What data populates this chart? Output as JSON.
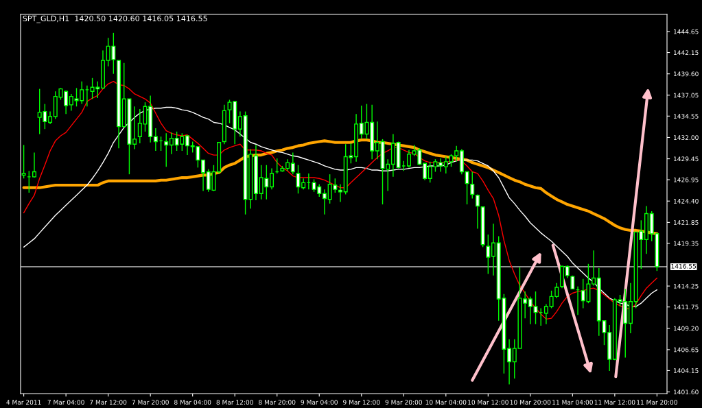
{
  "chart_data": {
    "type": "candlestick",
    "title": "SPT_GLD,H1  1420.50 1420.60 1416.05 1416.55",
    "color": "#00ff00",
    "categories": [
      "4 Mar 2011",
      null,
      null,
      null,
      null,
      null,
      null,
      null,
      "7 Mar 04:00",
      null,
      null,
      null,
      null,
      null,
      null,
      null,
      "7 Mar 12:00",
      null,
      null,
      null,
      null,
      null,
      null,
      null,
      "7 Mar 20:00",
      null,
      null,
      null,
      null,
      null,
      null,
      null,
      "8 Mar 04:00",
      null,
      null,
      null,
      null,
      null,
      null,
      null,
      "8 Mar 12:00",
      null,
      null,
      null,
      null,
      null,
      null,
      null,
      "8 Mar 20:00",
      null,
      null,
      null,
      null,
      null,
      null,
      null,
      "9 Mar 04:00",
      null,
      null,
      null,
      null,
      null,
      null,
      null,
      "9 Mar 12:00",
      null,
      null,
      null,
      null,
      null,
      null,
      null,
      "9 Mar 20:00",
      null,
      null,
      null,
      null,
      null,
      null,
      null,
      "10 Mar 04:00",
      null,
      null,
      null,
      null,
      null,
      null,
      null,
      "10 Mar 12:00",
      null,
      null,
      null,
      null,
      null,
      null,
      null,
      "10 Mar 20:00",
      null,
      null,
      null,
      null,
      null,
      null,
      null,
      "11 Mar 04:00",
      null,
      null,
      null,
      null,
      null,
      null,
      null,
      "11 Mar 12:00",
      null,
      null,
      null,
      null,
      null,
      null,
      null,
      "11 Mar 20:00"
    ],
    "ohlc": [
      [
        1427.5,
        1431.1,
        1427.1,
        1427.7
      ],
      [
        1427.3,
        1428.0,
        1425.4,
        1427.3
      ],
      [
        1427.3,
        1430.2,
        1427.2,
        1427.9
      ],
      [
        1434.4,
        1437.8,
        1432.4,
        1435.0
      ],
      [
        1435.1,
        1436.0,
        1433.0,
        1433.9
      ],
      [
        1433.8,
        1435.1,
        1433.6,
        1434.5
      ],
      [
        1434.5,
        1437.5,
        1434.2,
        1436.9
      ],
      [
        1436.8,
        1437.9,
        1436.5,
        1437.8
      ],
      [
        1437.5,
        1437.6,
        1434.8,
        1435.8
      ],
      [
        1435.9,
        1437.2,
        1435.2,
        1436.9
      ],
      [
        1436.6,
        1437.9,
        1435.7,
        1436.4
      ],
      [
        1436.4,
        1438.7,
        1436.0,
        1437.7
      ],
      [
        1437.7,
        1438.2,
        1435.7,
        1437.7
      ],
      [
        1437.5,
        1439.1,
        1436.6,
        1438.0
      ],
      [
        1438.0,
        1438.7,
        1436.7,
        1437.8
      ],
      [
        1437.9,
        1442.4,
        1437.8,
        1441.2
      ],
      [
        1441.2,
        1443.9,
        1440.5,
        1442.9
      ],
      [
        1442.9,
        1444.5,
        1439.6,
        1441.3
      ],
      [
        1441.2,
        1441.2,
        1430.7,
        1433.3
      ],
      [
        1433.3,
        1440.9,
        1433.2,
        1436.6
      ],
      [
        1436.6,
        1436.6,
        1427.6,
        1431.2
      ],
      [
        1431.2,
        1435.7,
        1430.6,
        1431.8
      ],
      [
        1432.1,
        1435.4,
        1431.3,
        1433.7
      ],
      [
        1433.6,
        1436.2,
        1432.7,
        1435.7
      ],
      [
        1435.7,
        1437.0,
        1431.4,
        1432.1
      ],
      [
        1432.1,
        1433.1,
        1430.4,
        1431.5
      ],
      [
        1431.6,
        1432.1,
        1430.4,
        1431.6
      ],
      [
        1431.5,
        1432.5,
        1428.5,
        1431.1
      ],
      [
        1431.1,
        1432.6,
        1430.0,
        1431.9
      ],
      [
        1431.9,
        1432.7,
        1430.4,
        1431.1
      ],
      [
        1431.2,
        1432.5,
        1430.4,
        1432.1
      ],
      [
        1432.2,
        1432.2,
        1429.9,
        1431.0
      ],
      [
        1431.0,
        1431.5,
        1430.2,
        1430.9
      ],
      [
        1430.9,
        1430.9,
        1428.4,
        1429.3
      ],
      [
        1429.3,
        1429.3,
        1425.6,
        1427.8
      ],
      [
        1427.9,
        1428.2,
        1425.5,
        1425.8
      ],
      [
        1425.7,
        1428.7,
        1425.6,
        1427.9
      ],
      [
        1427.9,
        1431.4,
        1427.7,
        1431.4
      ],
      [
        1431.5,
        1435.9,
        1431.2,
        1435.2
      ],
      [
        1435.3,
        1436.5,
        1433.7,
        1436.2
      ],
      [
        1436.3,
        1436.3,
        1431.2,
        1433.0
      ],
      [
        1433.0,
        1435.1,
        1432.1,
        1434.5
      ],
      [
        1434.6,
        1435.1,
        1422.8,
        1424.6
      ],
      [
        1424.6,
        1430.6,
        1423.5,
        1430.0
      ],
      [
        1429.8,
        1431.1,
        1424.5,
        1425.3
      ],
      [
        1425.3,
        1428.7,
        1424.6,
        1427.2
      ],
      [
        1427.1,
        1428.7,
        1424.6,
        1426.1
      ],
      [
        1426.1,
        1428.3,
        1425.8,
        1427.7
      ],
      [
        1427.9,
        1429.5,
        1427.7,
        1427.9
      ],
      [
        1428.0,
        1428.6,
        1427.9,
        1428.3
      ],
      [
        1428.3,
        1429.4,
        1428.0,
        1429.0
      ],
      [
        1428.9,
        1430.2,
        1427.6,
        1427.9
      ],
      [
        1427.7,
        1428.7,
        1425.3,
        1426.1
      ],
      [
        1426.0,
        1427.1,
        1425.8,
        1426.6
      ],
      [
        1426.6,
        1427.7,
        1425.8,
        1426.6
      ],
      [
        1426.6,
        1427.0,
        1425.5,
        1425.8
      ],
      [
        1426.1,
        1426.4,
        1424.9,
        1425.3
      ],
      [
        1425.3,
        1425.8,
        1422.8,
        1424.7
      ],
      [
        1424.6,
        1427.6,
        1424.1,
        1426.4
      ],
      [
        1426.3,
        1427.1,
        1425.4,
        1425.8
      ],
      [
        1425.7,
        1426.4,
        1424.3,
        1425.5
      ],
      [
        1425.5,
        1431.2,
        1425.2,
        1429.7
      ],
      [
        1429.8,
        1431.3,
        1428.9,
        1429.6
      ],
      [
        1429.7,
        1434.8,
        1429.1,
        1433.6
      ],
      [
        1433.7,
        1435.8,
        1431.9,
        1432.4
      ],
      [
        1432.4,
        1436.0,
        1431.8,
        1433.8
      ],
      [
        1433.8,
        1435.9,
        1429.4,
        1430.4
      ],
      [
        1430.4,
        1433.9,
        1429.4,
        1431.4
      ],
      [
        1431.5,
        1431.8,
        1424.0,
        1428.3
      ],
      [
        1428.2,
        1429.4,
        1425.6,
        1428.8
      ],
      [
        1428.8,
        1432.4,
        1427.3,
        1431.3
      ],
      [
        1431.4,
        1431.5,
        1428.3,
        1428.4
      ],
      [
        1428.6,
        1429.2,
        1428.0,
        1428.6
      ],
      [
        1428.6,
        1430.5,
        1428.4,
        1430.0
      ],
      [
        1430.0,
        1431.1,
        1429.8,
        1430.4
      ],
      [
        1430.5,
        1430.7,
        1428.7,
        1428.8
      ],
      [
        1428.9,
        1428.9,
        1426.9,
        1427.1
      ],
      [
        1427.1,
        1429.1,
        1426.6,
        1428.5
      ],
      [
        1428.5,
        1429.4,
        1427.9,
        1429.1
      ],
      [
        1429.0,
        1429.5,
        1427.9,
        1428.6
      ],
      [
        1428.5,
        1429.7,
        1427.7,
        1429.1
      ],
      [
        1429.1,
        1430.0,
        1428.5,
        1429.8
      ],
      [
        1429.8,
        1431.0,
        1429.1,
        1430.4
      ],
      [
        1430.4,
        1430.6,
        1427.6,
        1427.9
      ],
      [
        1427.9,
        1427.9,
        1424.0,
        1426.5
      ],
      [
        1426.4,
        1427.9,
        1424.7,
        1425.2
      ],
      [
        1425.1,
        1425.2,
        1421.1,
        1423.8
      ],
      [
        1423.7,
        1423.7,
        1418.9,
        1419.2
      ],
      [
        1419.0,
        1420.4,
        1415.7,
        1417.7
      ],
      [
        1417.8,
        1421.7,
        1415.5,
        1419.4
      ],
      [
        1419.4,
        1420.2,
        1410.1,
        1412.7
      ],
      [
        1412.8,
        1413.3,
        1403.8,
        1406.7
      ],
      [
        1406.8,
        1407.9,
        1402.5,
        1405.2
      ],
      [
        1405.2,
        1407.9,
        1403.2,
        1406.8
      ],
      [
        1406.8,
        1416.5,
        1406.8,
        1412.8
      ],
      [
        1412.7,
        1413.6,
        1410.4,
        1412.2
      ],
      [
        1412.7,
        1413.0,
        1409.7,
        1411.8
      ],
      [
        1411.8,
        1413.6,
        1409.7,
        1411.1
      ],
      [
        1411.1,
        1411.6,
        1409.5,
        1411.1
      ],
      [
        1411.0,
        1412.1,
        1409.7,
        1411.8
      ],
      [
        1411.8,
        1413.7,
        1411.6,
        1413.0
      ],
      [
        1413.0,
        1414.6,
        1412.8,
        1414.1
      ],
      [
        1414.2,
        1416.7,
        1414.0,
        1416.6
      ],
      [
        1416.6,
        1416.7,
        1415.2,
        1415.5
      ],
      [
        1415.4,
        1415.5,
        1413.9,
        1413.9
      ],
      [
        1413.8,
        1414.2,
        1410.8,
        1413.8
      ],
      [
        1413.7,
        1415.1,
        1411.6,
        1412.5
      ],
      [
        1412.4,
        1416.9,
        1412.2,
        1414.5
      ],
      [
        1414.5,
        1418.5,
        1414.3,
        1415.2
      ],
      [
        1415.2,
        1416.4,
        1408.3,
        1410.1
      ],
      [
        1410.1,
        1410.1,
        1407.2,
        1408.7
      ],
      [
        1408.7,
        1409.6,
        1404.1,
        1405.5
      ],
      [
        1405.5,
        1412.8,
        1405.4,
        1412.6
      ],
      [
        1412.6,
        1413.2,
        1411.8,
        1412.4
      ],
      [
        1412.4,
        1413.9,
        1405.7,
        1409.8
      ],
      [
        1409.8,
        1414.6,
        1408.6,
        1412.4
      ],
      [
        1412.4,
        1420.7,
        1411.6,
        1420.7
      ],
      [
        1420.8,
        1422.1,
        1416.3,
        1419.8
      ],
      [
        1419.8,
        1423.8,
        1418.1,
        1422.9
      ],
      [
        1422.9,
        1423.2,
        1419.6,
        1420.5
      ],
      [
        1420.5,
        1420.6,
        1416.05,
        1416.55
      ]
    ],
    "series": [
      {
        "type": "line",
        "color": "#ffa500",
        "values": [
          1426.0,
          1426.0,
          1426.0,
          1426.0,
          1426.1,
          1426.2,
          1426.3,
          1426.3,
          1426.3,
          1426.3,
          1426.3,
          1426.3,
          1426.3,
          1426.3,
          1426.3,
          1426.6,
          1426.8,
          1426.8,
          1426.8,
          1426.8,
          1426.8,
          1426.8,
          1426.8,
          1426.8,
          1426.8,
          1426.8,
          1426.9,
          1426.9,
          1427.0,
          1427.1,
          1427.2,
          1427.2,
          1427.3,
          1427.4,
          1427.5,
          1427.5,
          1427.7,
          1427.8,
          1428.4,
          1428.7,
          1428.9,
          1429.3,
          1429.7,
          1429.8,
          1429.9,
          1429.9,
          1430.1,
          1430.2,
          1430.4,
          1430.5,
          1430.7,
          1430.8,
          1431.0,
          1431.1,
          1431.3,
          1431.4,
          1431.5,
          1431.6,
          1431.5,
          1431.4,
          1431.4,
          1431.4,
          1431.4,
          1431.6,
          1431.7,
          1431.7,
          1431.6,
          1431.4,
          1431.4,
          1431.3,
          1431.2,
          1431.1,
          1431.0,
          1430.9,
          1430.8,
          1430.5,
          1430.3,
          1430.1,
          1429.9,
          1429.8,
          1429.7,
          1429.6,
          1429.5,
          1429.4,
          1429.3,
          1429.0,
          1428.8,
          1428.6,
          1428.4,
          1428.1,
          1427.8,
          1427.5,
          1427.2,
          1426.9,
          1426.7,
          1426.4,
          1426.2,
          1426.0,
          1425.9,
          1425.4,
          1425.0,
          1424.6,
          1424.3,
          1424.0,
          1423.8,
          1423.6,
          1423.4,
          1423.2,
          1422.9,
          1422.6,
          1422.3,
          1421.9,
          1421.5,
          1421.2,
          1421.0,
          1420.9,
          1420.9,
          1420.8,
          1420.7,
          1420.6,
          1420.5
        ]
      },
      {
        "type": "line",
        "color": "#ffffff",
        "values": [
          1418.9,
          1419.4,
          1419.9,
          1420.6,
          1421.3,
          1422.0,
          1422.7,
          1423.3,
          1423.9,
          1424.5,
          1425.1,
          1425.7,
          1426.3,
          1427.1,
          1428.0,
          1429.0,
          1430.1,
          1431.4,
          1432.3,
          1433.2,
          1433.8,
          1434.4,
          1434.9,
          1435.2,
          1435.4,
          1435.5,
          1435.5,
          1435.6,
          1435.6,
          1435.5,
          1435.3,
          1435.2,
          1435.0,
          1434.7,
          1434.4,
          1434.2,
          1433.8,
          1433.7,
          1433.5,
          1433.2,
          1432.9,
          1432.4,
          1431.9,
          1431.4,
          1431.2,
          1430.9,
          1430.7,
          1430.5,
          1430.3,
          1430.2,
          1430.0,
          1429.8,
          1429.7,
          1429.5,
          1429.3,
          1429.1,
          1428.9,
          1428.6,
          1428.4,
          1428.2,
          1428.1,
          1428.1,
          1428.2,
          1428.4,
          1428.4,
          1428.3,
          1428.1,
          1428.1,
          1428.0,
          1428.0,
          1428.1,
          1428.2,
          1428.2,
          1428.3,
          1428.4,
          1428.4,
          1428.5,
          1428.6,
          1428.6,
          1428.6,
          1428.7,
          1429.0,
          1429.2,
          1429.3,
          1429.3,
          1429.3,
          1429.2,
          1428.9,
          1428.6,
          1428.0,
          1427.2,
          1426.0,
          1424.8,
          1424.1,
          1423.3,
          1422.6,
          1421.8,
          1421.2,
          1420.6,
          1420.1,
          1419.6,
          1419.0,
          1418.4,
          1417.8,
          1417.0,
          1416.4,
          1415.8,
          1415.2,
          1414.7,
          1414.0,
          1413.4,
          1412.8,
          1412.5,
          1412.2,
          1412.1,
          1411.8,
          1411.8,
          1412.2,
          1412.8,
          1413.4,
          1413.8
        ]
      },
      {
        "type": "line",
        "color": "#ff0000",
        "values": [
          1423.0,
          1424.1,
          1425.1,
          1427.1,
          1428.7,
          1430.4,
          1431.6,
          1432.2,
          1432.6,
          1433.4,
          1434.2,
          1435.0,
          1436.3,
          1436.7,
          1437.0,
          1437.8,
          1438.4,
          1438.7,
          1438.3,
          1438.2,
          1437.8,
          1437.2,
          1436.9,
          1436.6,
          1436.1,
          1434.9,
          1433.7,
          1432.8,
          1432.5,
          1432.3,
          1432.2,
          1432.3,
          1431.8,
          1431.3,
          1430.7,
          1430.1,
          1429.9,
          1429.9,
          1430.5,
          1430.8,
          1431.0,
          1431.2,
          1430.5,
          1430.5,
          1430.5,
          1430.4,
          1430.1,
          1429.9,
          1429.0,
          1428.4,
          1428.0,
          1427.4,
          1427.2,
          1427.2,
          1427.2,
          1427.2,
          1427.1,
          1426.9,
          1426.6,
          1426.3,
          1426.0,
          1426.0,
          1426.6,
          1427.2,
          1427.8,
          1428.4,
          1429.0,
          1429.6,
          1430.1,
          1430.4,
          1430.8,
          1430.8,
          1430.5,
          1430.2,
          1430.1,
          1429.6,
          1429.2,
          1429.0,
          1429.0,
          1429.0,
          1429.0,
          1429.2,
          1429.3,
          1429.2,
          1428.6,
          1427.9,
          1427.7,
          1426.8,
          1425.7,
          1424.7,
          1422.7,
          1419.7,
          1417.3,
          1415.7,
          1414.3,
          1413.4,
          1412.4,
          1411.6,
          1410.9,
          1410.3,
          1410.4,
          1411.2,
          1412.2,
          1413.0,
          1413.4,
          1413.6,
          1413.7,
          1413.9,
          1414.0,
          1413.7,
          1413.2,
          1412.7,
          1412.2,
          1411.9,
          1411.6,
          1411.5,
          1412.1,
          1413.1,
          1414.0,
          1414.6,
          1415.2
        ]
      }
    ],
    "ylim": [
      1401.4,
      1446.7
    ],
    "yticks": [
      {
        "value": 1401.6,
        "label": "1401.60"
      },
      1404.15,
      1406.65,
      {
        "value": 1409.2,
        "label": "1409.20"
      },
      1411.75,
      1414.25,
      1419.35,
      1421.85,
      {
        "value": 1424.4,
        "label": "1424.40"
      },
      1426.95,
      1429.45,
      {
        "value": 1432.0,
        "label": "1432.00"
      },
      1434.55,
      1437.05,
      {
        "value": 1439.6,
        "label": "1439.60"
      },
      1442.15,
      1444.65
    ],
    "ref_lines": [
      {
        "axis": "y",
        "value": 1416.55,
        "label": "1416.55",
        "color": "#c0c0c0"
      }
    ]
  }
}
